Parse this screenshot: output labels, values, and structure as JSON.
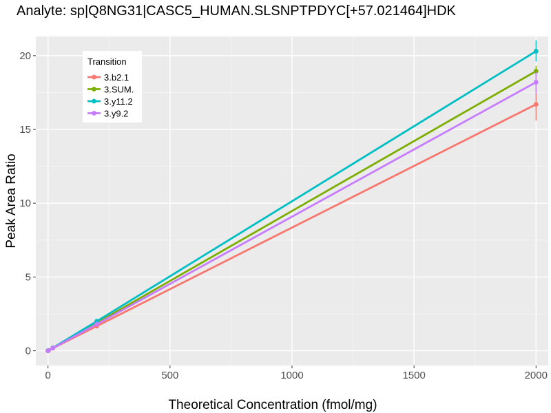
{
  "chart_data": {
    "type": "line",
    "title": "Analyte: sp|Q8NG31|CASC5_HUMAN.SLSNPTPDYC[+57.021464]HDK",
    "xlabel": "Theoretical Concentration (fmol/mg)",
    "ylabel": "Peak Area Ratio",
    "xlim": [
      -50,
      2050
    ],
    "ylim": [
      -1.0,
      21.3
    ],
    "xticks": [
      0,
      500,
      1000,
      1500,
      2000
    ],
    "xtick_labels": [
      "0",
      "500",
      "1000",
      "1500",
      "2000"
    ],
    "yticks": [
      0,
      5,
      10,
      15,
      20
    ],
    "ytick_labels": [
      "0",
      "5",
      "10",
      "15",
      "20"
    ],
    "grid": true,
    "legend": {
      "title": "Transition",
      "position": "top-left",
      "entries": [
        "3.b2.1",
        "3.SUM.",
        "3.y11.2",
        "3.y9.2"
      ]
    },
    "x": [
      0,
      2,
      20,
      200,
      2000
    ],
    "series": [
      {
        "name": "3.b2.1",
        "color": "#F8766D",
        "values": [
          0,
          0.02,
          0.17,
          1.67,
          16.7
        ],
        "error_bars": [
          {
            "x": 2000,
            "low": 15.6,
            "high": 17.9
          }
        ]
      },
      {
        "name": "3.SUM.",
        "color": "#7CAE00",
        "values": [
          0,
          0.02,
          0.19,
          1.89,
          18.95
        ],
        "error_bars": [
          {
            "x": 2000,
            "low": 17.9,
            "high": 19.3
          }
        ]
      },
      {
        "name": "3.y11.2",
        "color": "#00BFC4",
        "values": [
          0,
          0.02,
          0.2,
          2.0,
          20.3
        ],
        "error_bars": [
          {
            "x": 2000,
            "low": 19.6,
            "high": 21.05
          }
        ]
      },
      {
        "name": "3.y9.2",
        "color": "#C77CFF",
        "values": [
          0,
          0.02,
          0.18,
          1.8,
          18.2
        ],
        "error_bars": [
          {
            "x": 2000,
            "low": 17.4,
            "high": 18.9
          }
        ]
      }
    ],
    "colors": {
      "panel_background": "#EBEBEB",
      "grid_major": "#FFFFFF",
      "grid_minor": "#F5F5F5",
      "tick_text": "#4D4D4D",
      "tick_line": "#333333"
    }
  }
}
